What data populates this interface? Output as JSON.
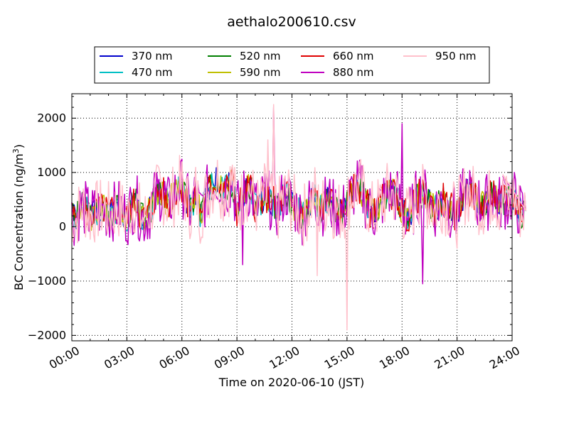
{
  "chart_data": {
    "type": "line",
    "title": "aethalo200610.csv",
    "xlabel": "Time on 2020-06-10 (JST)",
    "ylabel": "BC Concentration (ng/m",
    "ylabel_sup": "3",
    "ylabel_suffix": ")",
    "xlim": [
      "00:00",
      "24:00"
    ],
    "ylim": [
      -2100,
      2450
    ],
    "x_ticks": [
      "00:00",
      "03:00",
      "06:00",
      "09:00",
      "12:00",
      "15:00",
      "18:00",
      "21:00",
      "24:00"
    ],
    "y_ticks": [
      -2000,
      -1000,
      0,
      1000,
      2000
    ],
    "y_tick_labels": [
      "−2000",
      "−1000",
      "0",
      "1000",
      "2000"
    ],
    "grid": true,
    "legend_placement": "top-center-outside",
    "x_hours_step": 0.25,
    "base_series": [
      200,
      150,
      400,
      320,
      180,
      260,
      300,
      330,
      250,
      280,
      350,
      300,
      150,
      380,
      450,
      200,
      150,
      300,
      500,
      650,
      600,
      400,
      550,
      700,
      750,
      500,
      300,
      650,
      250,
      500,
      700,
      800,
      900,
      600,
      750,
      850,
      300,
      500,
      650,
      700,
      400,
      350,
      600,
      500,
      450,
      300,
      550,
      650,
      400,
      350,
      200,
      250,
      450,
      600,
      300,
      400,
      500,
      350,
      300,
      250,
      450,
      600,
      750,
      700,
      500,
      300,
      250,
      400,
      500,
      650,
      600,
      550,
      300,
      200,
      250,
      500,
      600,
      550,
      450,
      300,
      400,
      500,
      350,
      300,
      200,
      500,
      650,
      600,
      550,
      400,
      400,
      500,
      650,
      400,
      500,
      450,
      600,
      400,
      250,
      300
    ],
    "series": [
      {
        "name": "370 nm",
        "color": "#0000cc",
        "amp": 1.0,
        "seed": 1
      },
      {
        "name": "470 nm",
        "color": "#00bfc4",
        "amp": 1.05,
        "seed": 2
      },
      {
        "name": "520 nm",
        "color": "#007f00",
        "amp": 1.1,
        "seed": 3
      },
      {
        "name": "590 nm",
        "color": "#bfbf00",
        "amp": 1.15,
        "seed": 4
      },
      {
        "name": "660 nm",
        "color": "#e00000",
        "amp": 1.25,
        "seed": 5
      },
      {
        "name": "880 nm",
        "color": "#bf00bf",
        "amp": 2.2,
        "seed": 6
      },
      {
        "name": "950 nm",
        "color": "#ffc0cb",
        "amp": 2.4,
        "seed": 7
      }
    ],
    "spikes": [
      {
        "series": "950 nm",
        "hour": 11.0,
        "value": 2250
      },
      {
        "series": "880 nm",
        "hour": 11.0,
        "value": 2200
      },
      {
        "series": "950 nm",
        "hour": 15.0,
        "value": -1900
      },
      {
        "series": "880 nm",
        "hour": 18.0,
        "value": 1900
      },
      {
        "series": "880 nm",
        "hour": 19.1,
        "value": -1050
      },
      {
        "series": "950 nm",
        "hour": 13.4,
        "value": -900
      },
      {
        "series": "880 nm",
        "hour": 9.3,
        "value": -700
      },
      {
        "series": "950 nm",
        "hour": 10.7,
        "value": 1600
      }
    ]
  }
}
